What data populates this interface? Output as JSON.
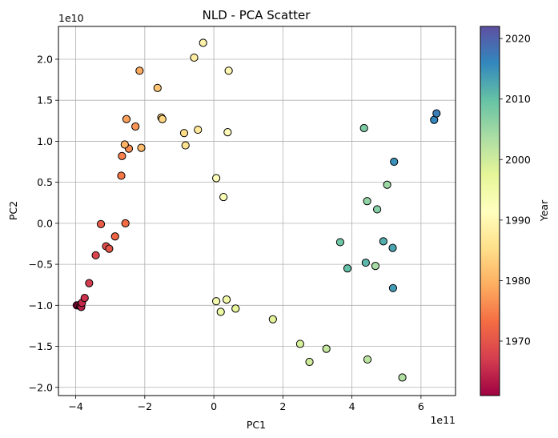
{
  "chart_data": {
    "type": "scatter",
    "title": "NLD - PCA Scatter",
    "xlabel": "PC1",
    "ylabel": "PC2",
    "x_offset_label": "1e11",
    "y_offset_label": "1e10",
    "xlim": [
      -4.5,
      7.0
    ],
    "ylim": [
      -2.1,
      2.4
    ],
    "xticks": [
      -4,
      -2,
      0,
      2,
      4,
      6
    ],
    "yticks": [
      -2.0,
      -1.5,
      -1.0,
      -0.5,
      0.0,
      0.5,
      1.0,
      1.5,
      2.0
    ],
    "grid": true,
    "colorbar": {
      "label": "Year",
      "colormap": "Spectral",
      "range": [
        1961,
        2022
      ],
      "ticks": [
        1970,
        1980,
        1990,
        2000,
        2010,
        2020
      ]
    },
    "points": [
      {
        "year": 1961,
        "x": -3.97,
        "y": -1.0
      },
      {
        "year": 1962,
        "x": -3.92,
        "y": -1.0
      },
      {
        "year": 1963,
        "x": -3.87,
        "y": -1.01
      },
      {
        "year": 1964,
        "x": -3.84,
        "y": -1.02
      },
      {
        "year": 1965,
        "x": -3.82,
        "y": -0.97
      },
      {
        "year": 1966,
        "x": -3.74,
        "y": -0.91
      },
      {
        "year": 1967,
        "x": -3.61,
        "y": -0.73
      },
      {
        "year": 1968,
        "x": -3.42,
        "y": -0.39
      },
      {
        "year": 1969,
        "x": -3.12,
        "y": -0.28
      },
      {
        "year": 1970,
        "x": -3.03,
        "y": -0.31
      },
      {
        "year": 1971,
        "x": -3.27,
        "y": -0.01
      },
      {
        "year": 1972,
        "x": -2.86,
        "y": -0.16
      },
      {
        "year": 1973,
        "x": -2.56,
        "y": 0.0
      },
      {
        "year": 1974,
        "x": -2.68,
        "y": 0.58
      },
      {
        "year": 1975,
        "x": -2.66,
        "y": 0.82
      },
      {
        "year": 1976,
        "x": -2.46,
        "y": 0.91
      },
      {
        "year": 1977,
        "x": -2.27,
        "y": 1.18
      },
      {
        "year": 1978,
        "x": -2.53,
        "y": 1.27
      },
      {
        "year": 1979,
        "x": -2.15,
        "y": 1.86
      },
      {
        "year": 1980,
        "x": -2.58,
        "y": 0.96
      },
      {
        "year": 1981,
        "x": -2.1,
        "y": 0.92
      },
      {
        "year": 1982,
        "x": -1.63,
        "y": 1.65
      },
      {
        "year": 1983,
        "x": -1.52,
        "y": 1.29
      },
      {
        "year": 1984,
        "x": -1.49,
        "y": 1.27
      },
      {
        "year": 1985,
        "x": -0.86,
        "y": 1.1
      },
      {
        "year": 1986,
        "x": -0.82,
        "y": 0.95
      },
      {
        "year": 1987,
        "x": -0.46,
        "y": 1.14
      },
      {
        "year": 1988,
        "x": -0.57,
        "y": 2.02
      },
      {
        "year": 1989,
        "x": -0.31,
        "y": 2.2
      },
      {
        "year": 1990,
        "x": 0.43,
        "y": 1.86
      },
      {
        "year": 1991,
        "x": 0.4,
        "y": 1.11
      },
      {
        "year": 1992,
        "x": 0.07,
        "y": 0.55
      },
      {
        "year": 1993,
        "x": 0.28,
        "y": 0.32
      },
      {
        "year": 1994,
        "x": 0.07,
        "y": -0.95
      },
      {
        "year": 1995,
        "x": 0.37,
        "y": -0.93
      },
      {
        "year": 1996,
        "x": 0.2,
        "y": -1.08
      },
      {
        "year": 1997,
        "x": 0.63,
        "y": -1.04
      },
      {
        "year": 1998,
        "x": 1.71,
        "y": -1.17
      },
      {
        "year": 1999,
        "x": 2.5,
        "y": -1.47
      },
      {
        "year": 2000,
        "x": 2.77,
        "y": -1.69
      },
      {
        "year": 2001,
        "x": 3.26,
        "y": -1.53
      },
      {
        "year": 2002,
        "x": 4.45,
        "y": -1.66
      },
      {
        "year": 2003,
        "x": 5.46,
        "y": -1.88
      },
      {
        "year": 2004,
        "x": 4.68,
        "y": -0.52
      },
      {
        "year": 2005,
        "x": 5.02,
        "y": 0.47
      },
      {
        "year": 2006,
        "x": 4.44,
        "y": 0.27
      },
      {
        "year": 2007,
        "x": 4.73,
        "y": 0.17
      },
      {
        "year": 2008,
        "x": 4.35,
        "y": 1.16
      },
      {
        "year": 2009,
        "x": 3.66,
        "y": -0.23
      },
      {
        "year": 2010,
        "x": 3.87,
        "y": -0.55
      },
      {
        "year": 2011,
        "x": 4.4,
        "y": -0.48
      },
      {
        "year": 2012,
        "x": 4.91,
        "y": -0.22
      },
      {
        "year": 2013,
        "x": 5.18,
        "y": -0.3
      },
      {
        "year": 2014,
        "x": 5.19,
        "y": -0.79
      },
      {
        "year": 2015,
        "x": 5.22,
        "y": 0.75
      },
      {
        "year": 2016,
        "x": 6.38,
        "y": 1.26
      },
      {
        "year": 2017,
        "x": 6.45,
        "y": 1.34
      }
    ]
  }
}
